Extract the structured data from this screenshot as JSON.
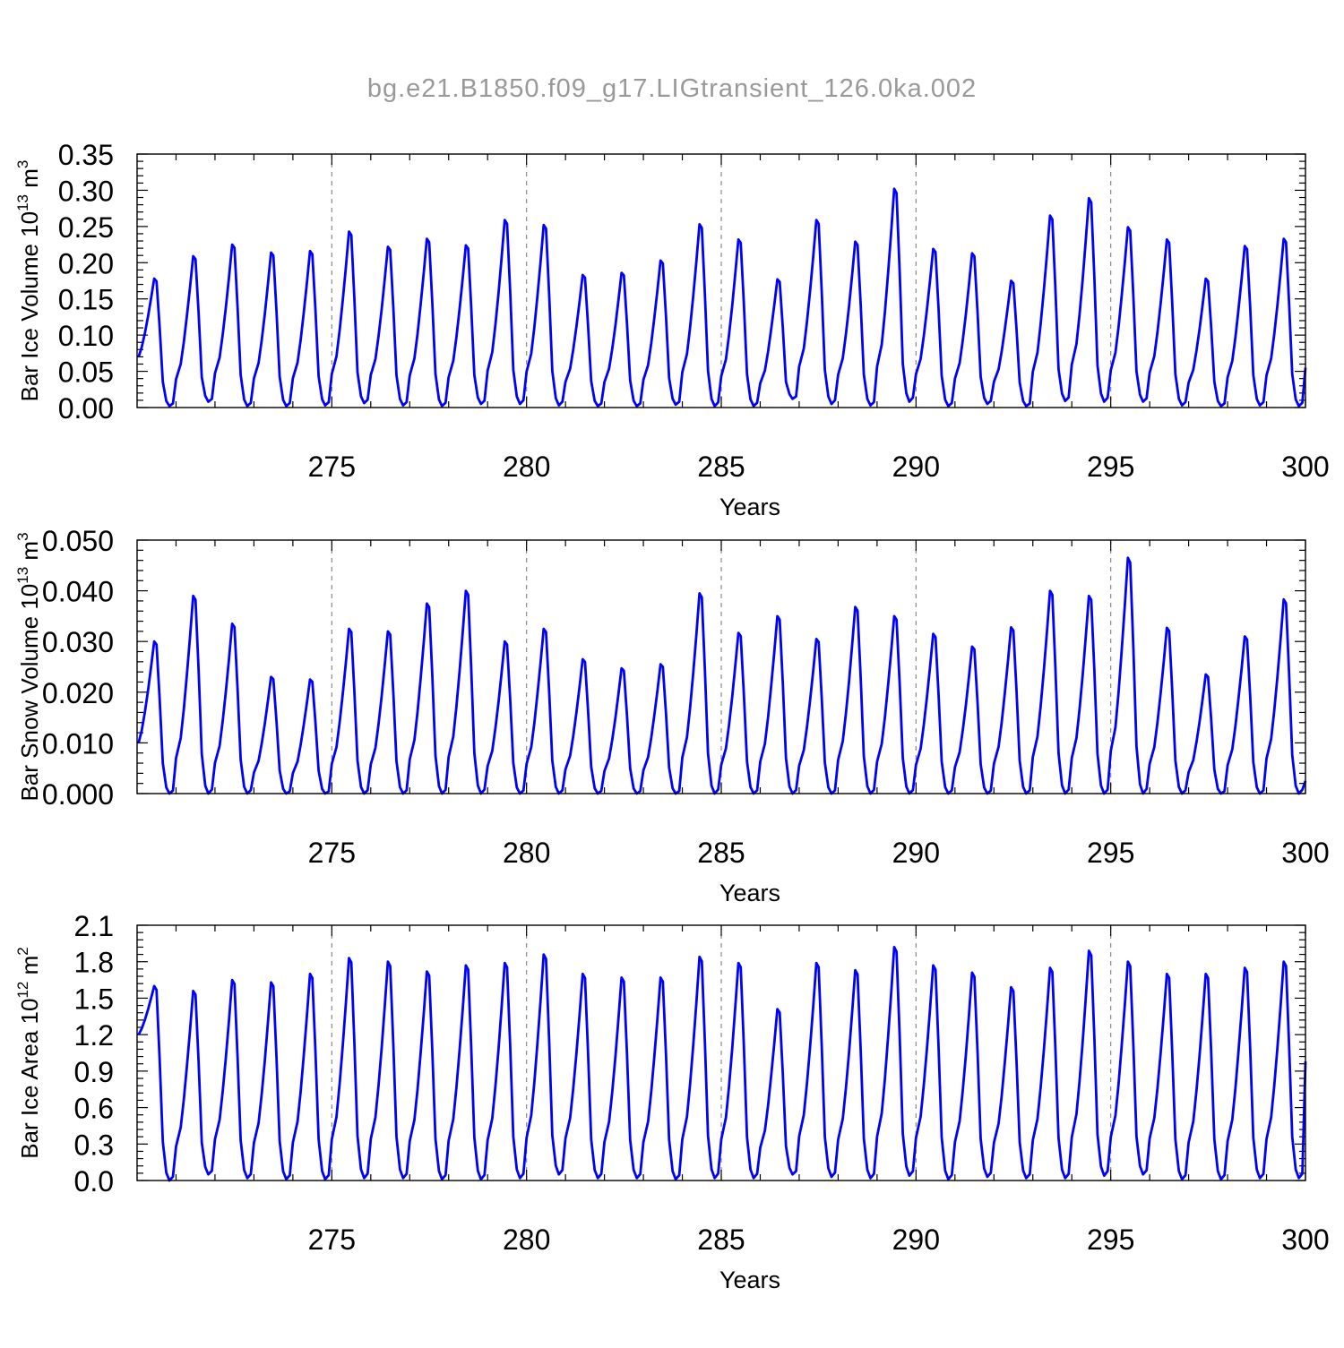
{
  "title": "bg.e21.B1850.f09_g17.LIGtransient_126.0ka.002",
  "colors": {
    "line": "#0000ff",
    "axis": "#000000",
    "grid": "#888888",
    "title": "#999999"
  },
  "chart_data": [
    {
      "type": "line",
      "ylabel_main": "Bar Ice Volume 10",
      "ylabel_sup": "13",
      "ylabel_unit": " m",
      "ylabel_unit_sup": "3",
      "xlabel": "Years",
      "xlim": [
        270.0,
        300.0
      ],
      "ylim": [
        0,
        0.35
      ],
      "yticks": [
        "0.00",
        "0.05",
        "0.10",
        "0.15",
        "0.20",
        "0.25",
        "0.30",
        "0.35"
      ],
      "xticks": [
        "275",
        "280",
        "285",
        "290",
        "295",
        "300"
      ],
      "grid_x": true,
      "peaks": [
        0.178,
        0.209,
        0.225,
        0.214,
        0.216,
        0.243,
        0.222,
        0.233,
        0.224,
        0.259,
        0.252,
        0.183,
        0.186,
        0.203,
        0.253,
        0.232,
        0.177,
        0.259,
        0.229,
        0.302,
        0.219,
        0.213,
        0.175,
        0.265,
        0.289,
        0.249,
        0.232,
        0.178,
        0.223,
        0.233
      ],
      "mins": [
        0.002,
        0.008,
        0.002,
        0.002,
        0.003,
        0.006,
        0.003,
        0.002,
        0.005,
        0.005,
        0.003,
        0.002,
        0.002,
        0.004,
        0.002,
        0.002,
        0.012,
        0.005,
        0.003,
        0.008,
        0.002,
        0.005,
        0.002,
        0.009,
        0.008,
        0.008,
        0.003,
        0.002,
        0.003,
        0.002
      ],
      "start": 0.07,
      "end": 0.055
    },
    {
      "type": "line",
      "ylabel_main": "Bar Snow Volume 10",
      "ylabel_sup": "13",
      "ylabel_unit": " m",
      "ylabel_unit_sup": "3",
      "xlabel": "Years",
      "xlim": [
        270.0,
        300.0
      ],
      "ylim": [
        0,
        0.05
      ],
      "yticks": [
        "0.000",
        "0.010",
        "0.020",
        "0.030",
        "0.040",
        "0.050"
      ],
      "xticks": [
        "275",
        "280",
        "285",
        "290",
        "295",
        "300"
      ],
      "grid_x": true,
      "peaks": [
        0.03,
        0.039,
        0.0335,
        0.023,
        0.0225,
        0.0325,
        0.032,
        0.0375,
        0.04,
        0.03,
        0.0325,
        0.0265,
        0.0247,
        0.0255,
        0.0395,
        0.0317,
        0.035,
        0.0305,
        0.0368,
        0.035,
        0.0315,
        0.029,
        0.0328,
        0.04,
        0.039,
        0.0465,
        0.0327,
        0.0235,
        0.031,
        0.0383
      ],
      "mins": [
        0.0,
        0.0,
        0.0,
        0.0,
        0.0,
        0.0,
        0.0,
        0.0,
        0.0,
        0.0,
        0.0,
        0.0,
        0.0,
        0.0,
        0.0,
        0.0,
        0.0,
        0.0,
        0.0,
        0.0,
        0.0,
        0.0,
        0.0,
        0.0,
        0.0,
        0.0,
        0.0,
        0.0,
        0.0,
        0.0
      ],
      "start": 0.01,
      "end": 0.0025
    },
    {
      "type": "line",
      "ylabel_main": "Bar Ice Area 10",
      "ylabel_sup": "12",
      "ylabel_unit": " m",
      "ylabel_unit_sup": "2",
      "xlabel": "Years",
      "xlim": [
        270.0,
        300.0
      ],
      "ylim": [
        0,
        2.1
      ],
      "yticks": [
        "0.0",
        "0.3",
        "0.6",
        "0.9",
        "1.2",
        "1.5",
        "1.8",
        "2.1"
      ],
      "xticks": [
        "275",
        "280",
        "285",
        "290",
        "295",
        "300"
      ],
      "grid_x": true,
      "peaks": [
        1.6,
        1.56,
        1.65,
        1.63,
        1.7,
        1.83,
        1.8,
        1.72,
        1.77,
        1.79,
        1.86,
        1.7,
        1.67,
        1.67,
        1.84,
        1.79,
        1.41,
        1.79,
        1.73,
        1.92,
        1.77,
        1.71,
        1.59,
        1.75,
        1.89,
        1.8,
        1.7,
        1.7,
        1.75,
        1.8
      ],
      "mins": [
        0.0,
        0.05,
        0.02,
        0.01,
        0.01,
        0.02,
        0.02,
        0.01,
        0.01,
        0.02,
        0.05,
        0.02,
        0.02,
        0.01,
        0.02,
        0.02,
        0.05,
        0.03,
        0.02,
        0.04,
        0.01,
        0.03,
        0.02,
        0.02,
        0.04,
        0.05,
        0.01,
        0.01,
        0.02,
        0.02
      ],
      "start": 1.2,
      "end": 0.98
    }
  ]
}
